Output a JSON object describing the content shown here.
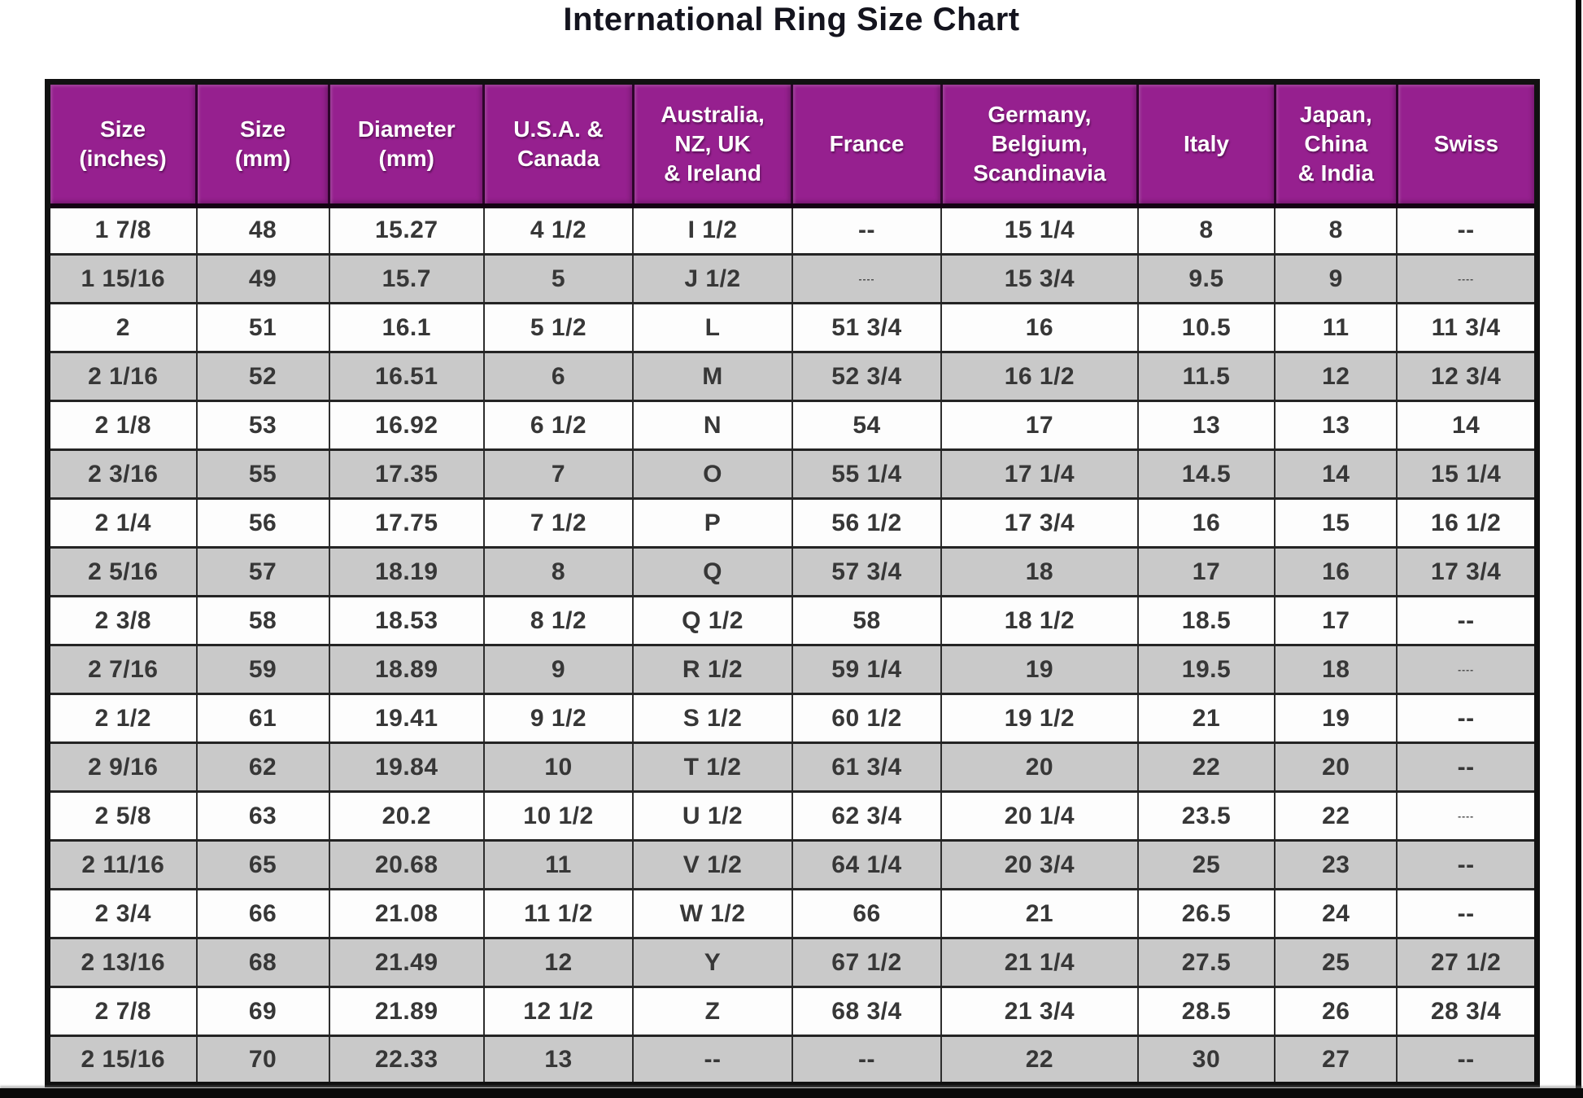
{
  "page": {
    "title": "International Ring Size Chart"
  },
  "colors": {
    "header_bg": "#96208F",
    "header_text": "#FFFFFF",
    "row_alt_gray": "#C9C9C9",
    "row_base_white": "#FDFDFD",
    "outer_border": "#111111",
    "cell_text": "#373737"
  },
  "chart_data": {
    "type": "table",
    "title": "International Ring Size Chart",
    "columns": [
      "Size\n(inches)",
      "Size\n(mm)",
      "Diameter\n(mm)",
      "U.S.A. &\nCanada",
      "Australia,\nNZ, UK\n& Ireland",
      "France",
      "Germany,\nBelgium,\nScandinavia",
      "Italy",
      "Japan,\nChina\n& India",
      "Swiss"
    ],
    "rows": [
      [
        "1 7/8",
        "48",
        "15.27",
        "4 1/2",
        "I 1/2",
        "--",
        "15 1/4",
        "8",
        "8",
        "--"
      ],
      [
        "1 15/16",
        "49",
        "15.7",
        "5",
        "J 1/2",
        "----",
        "15 3/4",
        "9.5",
        "9",
        "----"
      ],
      [
        "2",
        "51",
        "16.1",
        "5 1/2",
        "L",
        "51 3/4",
        "16",
        "10.5",
        "11",
        "11 3/4"
      ],
      [
        "2 1/16",
        "52",
        "16.51",
        "6",
        "M",
        "52 3/4",
        "16 1/2",
        "11.5",
        "12",
        "12 3/4"
      ],
      [
        "2 1/8",
        "53",
        "16.92",
        "6 1/2",
        "N",
        "54",
        "17",
        "13",
        "13",
        "14"
      ],
      [
        "2 3/16",
        "55",
        "17.35",
        "7",
        "O",
        "55 1/4",
        "17 1/4",
        "14.5",
        "14",
        "15 1/4"
      ],
      [
        "2 1/4",
        "56",
        "17.75",
        "7 1/2",
        "P",
        "56 1/2",
        "17 3/4",
        "16",
        "15",
        "16 1/2"
      ],
      [
        "2 5/16",
        "57",
        "18.19",
        "8",
        "Q",
        "57 3/4",
        "18",
        "17",
        "16",
        "17 3/4"
      ],
      [
        "2 3/8",
        "58",
        "18.53",
        "8 1/2",
        "Q 1/2",
        "58",
        "18 1/2",
        "18.5",
        "17",
        "--"
      ],
      [
        "2 7/16",
        "59",
        "18.89",
        "9",
        "R 1/2",
        "59 1/4",
        "19",
        "19.5",
        "18",
        "----"
      ],
      [
        "2 1/2",
        "61",
        "19.41",
        "9 1/2",
        "S 1/2",
        "60 1/2",
        "19 1/2",
        "21",
        "19",
        "--"
      ],
      [
        "2 9/16",
        "62",
        "19.84",
        "10",
        "T 1/2",
        "61 3/4",
        "20",
        "22",
        "20",
        "--"
      ],
      [
        "2 5/8",
        "63",
        "20.2",
        "10 1/2",
        "U 1/2",
        "62 3/4",
        "20 1/4",
        "23.5",
        "22",
        "----"
      ],
      [
        "2 11/16",
        "65",
        "20.68",
        "11",
        "V 1/2",
        "64 1/4",
        "20 3/4",
        "25",
        "23",
        "--"
      ],
      [
        "2 3/4",
        "66",
        "21.08",
        "11 1/2",
        "W 1/2",
        "66",
        "21",
        "26.5",
        "24",
        "--"
      ],
      [
        "2 13/16",
        "68",
        "21.49",
        "12",
        "Y",
        "67 1/2",
        "21 1/4",
        "27.5",
        "25",
        "27 1/2"
      ],
      [
        "2 7/8",
        "69",
        "21.89",
        "12 1/2",
        "Z",
        "68 3/4",
        "21 3/4",
        "28.5",
        "26",
        "28 3/4"
      ],
      [
        "2 15/16",
        "70",
        "22.33",
        "13",
        "--",
        "--",
        "22",
        "30",
        "27",
        "--"
      ]
    ]
  }
}
